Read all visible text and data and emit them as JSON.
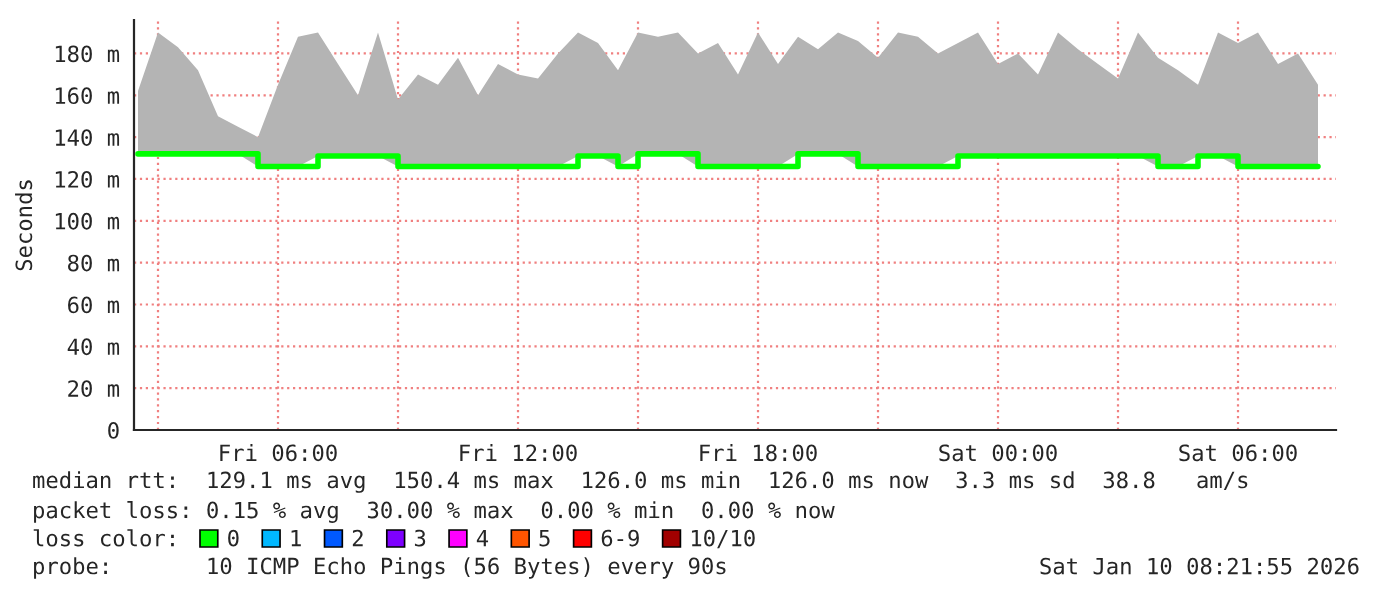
{
  "chart_data": {
    "type": "step",
    "ylabel": "Seconds",
    "xlim": [
      "2026-01-09T02:24",
      "2026-01-10T08:27"
    ],
    "xticks": [
      {
        "value": "2026-01-09T03:00",
        "label": null
      },
      {
        "value": "2026-01-09T06:00",
        "label": "Fri 06:00"
      },
      {
        "value": "2026-01-09T09:00",
        "label": null
      },
      {
        "value": "2026-01-09T12:00",
        "label": "Fri 12:00"
      },
      {
        "value": "2026-01-09T15:00",
        "label": null
      },
      {
        "value": "2026-01-09T18:00",
        "label": "Fri 18:00"
      },
      {
        "value": "2026-01-09T21:00",
        "label": null
      },
      {
        "value": "2026-01-10T00:00",
        "label": "Sat 00:00"
      },
      {
        "value": "2026-01-10T03:00",
        "label": null
      },
      {
        "value": "2026-01-10T06:00",
        "label": "Sat 06:00"
      }
    ],
    "ylim": [
      0,
      196
    ],
    "yticks": [
      {
        "value": 0,
        "label": "0"
      },
      {
        "value": 20,
        "label": "20 m"
      },
      {
        "value": 40,
        "label": "40 m"
      },
      {
        "value": 60,
        "label": "60 m"
      },
      {
        "value": 80,
        "label": "80 m"
      },
      {
        "value": 100,
        "label": "100 m"
      },
      {
        "value": 120,
        "label": "120 m"
      },
      {
        "value": 140,
        "label": "140 m"
      },
      {
        "value": 160,
        "label": "160 m"
      },
      {
        "value": 180,
        "label": "180 m"
      }
    ],
    "grid": true,
    "legend": "bottom",
    "series": [
      {
        "name": "0",
        "color": "#00ff00",
        "x": [
          "2026-01-09T02:30",
          "2026-01-09T03:00",
          "2026-01-09T03:30",
          "2026-01-09T04:00",
          "2026-01-09T04:30",
          "2026-01-09T05:00",
          "2026-01-09T05:30",
          "2026-01-09T06:00",
          "2026-01-09T06:30",
          "2026-01-09T07:00",
          "2026-01-09T07:30",
          "2026-01-09T08:00",
          "2026-01-09T08:30",
          "2026-01-09T09:00",
          "2026-01-09T09:30",
          "2026-01-09T10:00",
          "2026-01-09T10:30",
          "2026-01-09T11:00",
          "2026-01-09T11:30",
          "2026-01-09T12:00",
          "2026-01-09T12:30",
          "2026-01-09T13:00",
          "2026-01-09T13:30",
          "2026-01-09T14:00",
          "2026-01-09T14:30",
          "2026-01-09T15:00",
          "2026-01-09T15:30",
          "2026-01-09T16:00",
          "2026-01-09T16:30",
          "2026-01-09T17:00",
          "2026-01-09T17:30",
          "2026-01-09T18:00",
          "2026-01-09T18:30",
          "2026-01-09T19:00",
          "2026-01-09T19:30",
          "2026-01-09T20:00",
          "2026-01-09T20:30",
          "2026-01-09T21:00",
          "2026-01-09T21:30",
          "2026-01-09T22:00",
          "2026-01-09T22:30",
          "2026-01-09T23:00",
          "2026-01-09T23:30",
          "2026-01-10T00:00",
          "2026-01-10T00:30",
          "2026-01-10T01:00",
          "2026-01-10T01:30",
          "2026-01-10T02:00",
          "2026-01-10T02:30",
          "2026-01-10T03:00",
          "2026-01-10T03:30",
          "2026-01-10T04:00",
          "2026-01-10T04:30",
          "2026-01-10T05:00",
          "2026-01-10T05:30",
          "2026-01-10T06:00",
          "2026-01-10T06:30",
          "2026-01-10T07:00",
          "2026-01-10T07:30",
          "2026-01-10T08:00"
        ],
        "values": [
          132,
          132,
          132,
          132,
          132,
          132,
          126,
          126,
          126,
          131,
          131,
          131,
          131,
          126,
          126,
          126,
          126,
          126,
          126,
          126,
          126,
          126,
          131,
          131,
          126,
          132,
          132,
          132,
          126,
          126,
          126,
          126,
          126,
          132,
          132,
          132,
          126,
          126,
          126,
          126,
          126,
          131,
          131,
          131,
          131,
          131,
          131,
          131,
          131,
          131,
          131,
          126,
          126,
          131,
          131,
          126,
          126,
          126,
          126,
          126
        ],
        "lower": [
          132,
          132,
          132,
          132,
          132,
          132,
          126,
          126,
          126,
          131,
          131,
          131,
          131,
          126,
          126,
          126,
          126,
          126,
          126,
          126,
          126,
          126,
          131,
          131,
          126,
          132,
          132,
          132,
          126,
          126,
          126,
          126,
          126,
          132,
          132,
          132,
          126,
          126,
          126,
          126,
          126,
          131,
          131,
          131,
          131,
          131,
          131,
          131,
          131,
          131,
          131,
          126,
          126,
          131,
          131,
          126,
          126,
          126,
          126,
          126
        ],
        "upper": [
          162,
          190,
          183,
          172,
          150,
          145,
          140,
          165,
          188,
          190,
          175,
          160,
          190,
          158,
          170,
          165,
          178,
          160,
          175,
          170,
          168,
          180,
          190,
          185,
          172,
          190,
          188,
          190,
          180,
          185,
          170,
          190,
          175,
          188,
          182,
          190,
          186,
          178,
          190,
          188,
          180,
          185,
          190,
          175,
          180,
          170,
          190,
          182,
          175,
          168,
          190,
          178,
          172,
          165,
          190,
          185,
          190,
          175,
          180,
          165
        ]
      },
      {
        "name": "1",
        "color": "#00b8ff"
      },
      {
        "name": "2",
        "color": "#0059ff"
      },
      {
        "name": "3",
        "color": "#7e00ff"
      },
      {
        "name": "4",
        "color": "#ff00ff"
      },
      {
        "name": "5",
        "color": "#ff5500"
      },
      {
        "name": "6-9",
        "color": "#ff0000"
      },
      {
        "name": "10/10",
        "color": "#a10000"
      }
    ],
    "annotations": [
      "median rtt:  129.1 ms avg  150.4 ms max  126.0 ms min  126.0 ms now  3.3 ms sd  38.8   am/s",
      "packet loss: 0.15 % avg  30.00 % max  0.00 % min  0.00 % now",
      "loss color:",
      "probe:       10 ICMP Echo Pings (56 Bytes) every 90s",
      "Sat Jan 10 08:21:55 2026"
    ]
  }
}
